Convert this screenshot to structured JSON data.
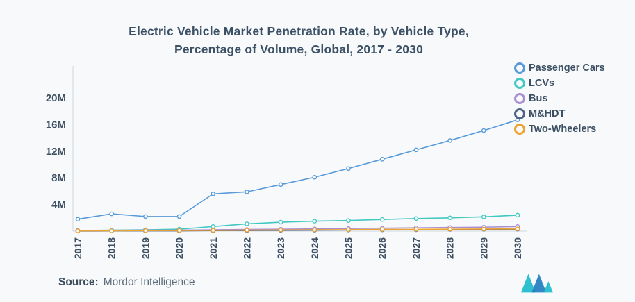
{
  "header": {
    "title_line1": "Electric Vehicle Market Penetration Rate, by Vehicle Type,",
    "title_line2": "Percentage of Volume, Global, 2017 - 2030"
  },
  "source": {
    "label": "Source:",
    "value": "Mordor Intelligence"
  },
  "colors": {
    "background": "#f7f9fb",
    "title_text": "#3d5166",
    "axis_text": "#3e5063",
    "axis_line": "#ccd6de",
    "passenger_cars": "#5899da",
    "lcvs": "#42c8c2",
    "bus": "#a98fd2",
    "mhdt": "#4f6488",
    "two_wheelers": "#efa32f",
    "logo_teal": "#2fc0cf",
    "logo_blue": "#1f7ec0"
  },
  "chart_data": {
    "type": "line",
    "title": "Electric Vehicle Market Penetration Rate, by Vehicle Type, Percentage of Volume, Global, 2017 - 2030",
    "x": [
      2017,
      2018,
      2019,
      2020,
      2021,
      2022,
      2023,
      2024,
      2025,
      2026,
      2027,
      2028,
      2029,
      2030
    ],
    "xlabel": "",
    "ylabel": "",
    "unit": "M",
    "ylim": [
      0,
      22.5
    ],
    "ytick_values": [
      4,
      8,
      12,
      16,
      20
    ],
    "ytick_labels": [
      "4M",
      "8M",
      "12M",
      "16M",
      "20M"
    ],
    "grid": false,
    "legend_position": "top-right",
    "series": [
      {
        "name": "Passenger Cars",
        "color": "#5899da",
        "values": [
          1.8,
          2.6,
          2.2,
          2.2,
          5.6,
          5.9,
          7.0,
          8.1,
          9.4,
          10.8,
          12.2,
          13.6,
          15.1,
          16.7
        ]
      },
      {
        "name": "LCVs",
        "color": "#42c8c2",
        "values": [
          0.1,
          0.15,
          0.2,
          0.3,
          0.7,
          1.1,
          1.35,
          1.5,
          1.6,
          1.75,
          1.9,
          2.0,
          2.15,
          2.4
        ]
      },
      {
        "name": "Bus",
        "color": "#a98fd2",
        "values": [
          0.1,
          0.12,
          0.15,
          0.15,
          0.2,
          0.25,
          0.3,
          0.35,
          0.4,
          0.45,
          0.5,
          0.55,
          0.6,
          0.7
        ]
      },
      {
        "name": "M&HDT",
        "color": "#4f6488",
        "values": [
          0.02,
          0.03,
          0.04,
          0.05,
          0.08,
          0.1,
          0.12,
          0.15,
          0.18,
          0.2,
          0.22,
          0.25,
          0.28,
          0.3
        ]
      },
      {
        "name": "Two-Wheelers",
        "color": "#efa32f",
        "values": [
          0.05,
          0.06,
          0.08,
          0.1,
          0.12,
          0.15,
          0.18,
          0.2,
          0.22,
          0.25,
          0.27,
          0.3,
          0.32,
          0.35
        ]
      }
    ]
  }
}
